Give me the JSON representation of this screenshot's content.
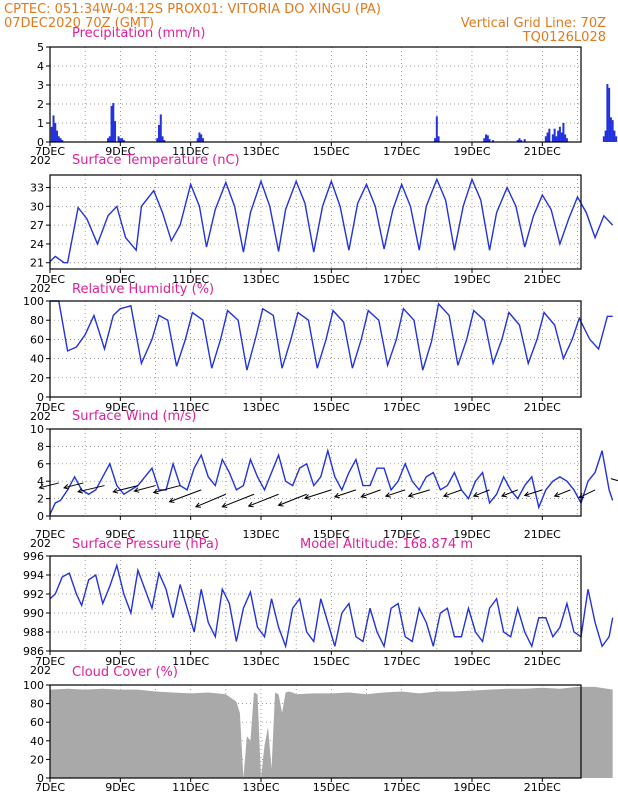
{
  "header": {
    "line1": "CPTEC:   051:34W-04:12S   PROX01: VITORIA DO XINGU (PA)",
    "line2_left": "07DEC2020 70Z (GMT)",
    "line2_right": "Vertical Grid Line: 70Z",
    "line3_right": "TQ0126L028"
  },
  "x_axis": {
    "tick_labels": [
      "7DEC",
      "9DEC",
      "11DEC",
      "13DEC",
      "15DEC",
      "17DEC",
      "19DEC",
      "21DEC"
    ],
    "cutoff_label": "202"
  },
  "colors": {
    "header": "#e07a1f",
    "panel_title": "#e0209a",
    "series": "#2233dd",
    "cloud": "#a9a9a9",
    "wind_arrow": "#000000"
  },
  "chart_data": [
    {
      "id": "precip",
      "type": "bar",
      "title": "Precipitation (mm/h)",
      "ylim": [
        0,
        5
      ],
      "yticks": [
        0,
        1,
        2,
        3,
        4,
        5
      ],
      "unit": "mm/h",
      "x_unit": "days since 7DEC",
      "x": [
        0.05,
        0.1,
        0.15,
        0.2,
        0.25,
        0.3,
        0.35,
        1.65,
        1.7,
        1.75,
        1.8,
        1.85,
        1.95,
        2.0,
        2.05,
        2.1,
        3.05,
        3.1,
        3.15,
        3.2,
        3.25,
        4.2,
        4.25,
        4.3,
        4.35,
        10.95,
        11.0,
        11.05,
        12.35,
        12.4,
        12.45,
        12.5,
        12.6,
        13.3,
        13.35,
        13.4,
        13.5,
        14.1,
        14.15,
        14.2,
        14.3,
        14.35,
        14.4,
        14.45,
        14.5,
        14.55,
        14.6,
        14.65,
        14.7,
        15.75,
        15.8,
        15.85,
        15.9,
        15.95,
        16.0,
        16.05,
        16.1
      ],
      "values": [
        0.8,
        1.4,
        1.0,
        0.6,
        0.3,
        0.2,
        0.1,
        0.2,
        0.3,
        1.9,
        2.05,
        1.1,
        0.3,
        0.2,
        0.2,
        0.1,
        0.2,
        0.9,
        1.45,
        0.3,
        0.1,
        0.2,
        0.5,
        0.4,
        0.2,
        0.2,
        1.35,
        0.3,
        0.2,
        0.4,
        0.35,
        0.15,
        0.1,
        0.1,
        0.2,
        0.1,
        0.15,
        0.3,
        0.5,
        0.7,
        0.4,
        0.7,
        0.3,
        0.6,
        0.8,
        0.5,
        1.0,
        0.4,
        0.2,
        0.3,
        0.6,
        3.05,
        2.85,
        1.3,
        1.15,
        0.6,
        0.3
      ]
    },
    {
      "id": "temp",
      "type": "line",
      "title": "Surface Temperature (nC)",
      "ylim": [
        20,
        35
      ],
      "yticks": [
        21,
        24,
        27,
        30,
        33
      ],
      "unit": "C",
      "x_unit": "days since 7DEC",
      "series": [
        {
          "x": [
            0,
            0.15,
            0.4,
            0.5,
            0.8,
            1.05,
            1.35,
            1.65,
            1.9,
            2.15,
            2.45,
            2.6,
            2.95,
            3.2,
            3.45,
            3.7,
            4.0,
            4.25,
            4.45,
            4.7,
            5.0,
            5.25,
            5.5,
            5.7,
            6.0,
            6.25,
            6.5,
            6.7,
            7.0,
            7.25,
            7.5,
            7.75,
            8.0,
            8.25,
            8.5,
            8.75,
            9.0,
            9.25,
            9.5,
            9.75,
            10.0,
            10.25,
            10.5,
            10.7,
            11.0,
            11.25,
            11.5,
            11.75,
            12.0,
            12.25,
            12.5,
            12.7,
            13.0,
            13.25,
            13.5,
            13.75,
            14.0,
            14.25,
            14.5,
            14.75,
            15.0,
            15.25,
            15.5,
            15.75,
            16.0
          ],
          "values": [
            21.2,
            22.0,
            21.0,
            21.0,
            29.8,
            28.0,
            24.0,
            28.5,
            30.0,
            25.0,
            23.0,
            30.0,
            32.5,
            29.0,
            24.5,
            27.0,
            33.5,
            30.0,
            23.5,
            29.5,
            33.8,
            30.0,
            22.7,
            29.0,
            34.0,
            30.0,
            22.8,
            29.5,
            34.0,
            30.5,
            22.7,
            30.0,
            34.0,
            30.0,
            23.0,
            30.5,
            33.5,
            30.0,
            23.2,
            29.5,
            33.5,
            30.0,
            23.0,
            30.0,
            34.3,
            31.0,
            23.0,
            30.0,
            34.3,
            31.0,
            23.0,
            29.0,
            33.0,
            30.0,
            23.5,
            28.5,
            31.8,
            29.5,
            24.0,
            28.0,
            31.5,
            29.0,
            25.0,
            28.5,
            27.0
          ]
        }
      ]
    },
    {
      "id": "rh",
      "type": "line",
      "title": "Relative Humidity (%)",
      "ylim": [
        0,
        100
      ],
      "yticks": [
        0,
        20,
        40,
        60,
        80,
        100
      ],
      "unit": "%",
      "x_unit": "days since 7DEC",
      "series": [
        {
          "x": [
            0,
            0.25,
            0.5,
            0.75,
            1.0,
            1.25,
            1.55,
            1.8,
            2.0,
            2.3,
            2.6,
            2.9,
            3.1,
            3.35,
            3.6,
            3.85,
            4.05,
            4.35,
            4.6,
            4.85,
            5.05,
            5.35,
            5.6,
            5.85,
            6.05,
            6.35,
            6.6,
            6.85,
            7.05,
            7.35,
            7.6,
            7.85,
            8.05,
            8.35,
            8.6,
            8.85,
            9.05,
            9.35,
            9.6,
            9.85,
            10.05,
            10.35,
            10.6,
            10.85,
            11.05,
            11.35,
            11.6,
            11.85,
            12.05,
            12.35,
            12.6,
            12.85,
            13.05,
            13.35,
            13.6,
            13.85,
            14.05,
            14.35,
            14.6,
            14.85,
            15.05,
            15.35,
            15.6,
            15.85,
            16.0
          ],
          "values": [
            100,
            100,
            48,
            52,
            65,
            85,
            50,
            85,
            92,
            95,
            35,
            60,
            85,
            80,
            32,
            60,
            88,
            80,
            30,
            60,
            90,
            80,
            28,
            62,
            92,
            85,
            30,
            60,
            88,
            80,
            30,
            60,
            90,
            78,
            30,
            60,
            90,
            80,
            33,
            60,
            92,
            80,
            28,
            58,
            97,
            85,
            33,
            60,
            90,
            80,
            35,
            60,
            88,
            75,
            35,
            60,
            88,
            75,
            40,
            60,
            82,
            60,
            50,
            84,
            84
          ]
        }
      ]
    },
    {
      "id": "wind",
      "type": "line",
      "title": "Surface Wind (m/s)",
      "ylim": [
        0,
        10
      ],
      "yticks": [
        0,
        2,
        4,
        6,
        8,
        10
      ],
      "unit": "m/s",
      "x_unit": "days since 7DEC",
      "series": [
        {
          "x": [
            0,
            0.15,
            0.3,
            0.5,
            0.7,
            0.9,
            1.1,
            1.3,
            1.5,
            1.7,
            1.9,
            2.1,
            2.3,
            2.5,
            2.7,
            2.9,
            3.1,
            3.3,
            3.5,
            3.7,
            3.9,
            4.1,
            4.3,
            4.5,
            4.7,
            4.9,
            5.1,
            5.3,
            5.5,
            5.7,
            5.9,
            6.1,
            6.3,
            6.5,
            6.7,
            6.9,
            7.1,
            7.3,
            7.5,
            7.7,
            7.9,
            8.1,
            8.3,
            8.5,
            8.7,
            8.9,
            9.1,
            9.3,
            9.5,
            9.7,
            9.9,
            10.1,
            10.3,
            10.5,
            10.7,
            10.9,
            11.1,
            11.3,
            11.5,
            11.7,
            11.9,
            12.1,
            12.3,
            12.5,
            12.7,
            12.9,
            13.1,
            13.3,
            13.5,
            13.7,
            13.9,
            14.1,
            14.3,
            14.5,
            14.7,
            14.9,
            15.1,
            15.3,
            15.5,
            15.7,
            15.9,
            16.0
          ],
          "values": [
            0.2,
            1.5,
            1.8,
            3.0,
            4.5,
            3.0,
            2.5,
            3.0,
            4.5,
            6.0,
            3.5,
            2.5,
            3.0,
            3.5,
            4.5,
            5.5,
            3.0,
            3.0,
            6.0,
            3.5,
            3.0,
            5.5,
            7.0,
            4.5,
            3.5,
            6.5,
            5.0,
            3.0,
            3.5,
            6.5,
            4.5,
            3.0,
            5.0,
            7.0,
            4.0,
            3.5,
            5.5,
            6.0,
            3.5,
            4.5,
            7.5,
            4.5,
            3.0,
            5.0,
            6.5,
            3.5,
            3.5,
            5.5,
            5.5,
            3.0,
            4.0,
            6.0,
            4.0,
            3.0,
            4.5,
            5.0,
            3.0,
            3.5,
            5.0,
            3.0,
            2.0,
            4.0,
            5.0,
            1.5,
            2.5,
            4.5,
            3.0,
            2.0,
            3.5,
            4.5,
            1.0,
            3.0,
            4.0,
            4.5,
            4.0,
            3.0,
            1.5,
            4.0,
            5.0,
            7.5,
            3.0,
            1.8
          ]
        }
      ],
      "arrows": [
        {
          "x": 0.25,
          "y": 3.8,
          "u": 0.55,
          "v": 0.35
        },
        {
          "x": 0.95,
          "y": 3.8,
          "u": 0.55,
          "v": 0.35
        },
        {
          "x": 1.55,
          "y": 3.5,
          "u": 0.75,
          "v": 0.45
        },
        {
          "x": 2.5,
          "y": 3.5,
          "u": 0.7,
          "v": 0.45
        },
        {
          "x": 3.0,
          "y": 3.5,
          "u": 0.6,
          "v": 0.4
        },
        {
          "x": 3.7,
          "y": 3.5,
          "u": 0.75,
          "v": 0.5
        },
        {
          "x": 4.3,
          "y": 3.0,
          "u": 0.9,
          "v": 0.85
        },
        {
          "x": 5.0,
          "y": 2.5,
          "u": 0.85,
          "v": 0.9
        },
        {
          "x": 5.8,
          "y": 2.5,
          "u": 0.9,
          "v": 0.9
        },
        {
          "x": 6.5,
          "y": 2.5,
          "u": 0.85,
          "v": 0.85
        },
        {
          "x": 7.3,
          "y": 2.5,
          "u": 0.8,
          "v": 0.8
        },
        {
          "x": 8.0,
          "y": 3.0,
          "u": 0.75,
          "v": 0.6
        },
        {
          "x": 8.7,
          "y": 3.0,
          "u": 0.6,
          "v": 0.5
        },
        {
          "x": 9.4,
          "y": 3.0,
          "u": 0.55,
          "v": 0.5
        },
        {
          "x": 10.1,
          "y": 3.0,
          "u": 0.55,
          "v": 0.45
        },
        {
          "x": 10.8,
          "y": 3.0,
          "u": 0.6,
          "v": 0.45
        },
        {
          "x": 11.7,
          "y": 3.0,
          "u": 0.5,
          "v": 0.45
        },
        {
          "x": 12.5,
          "y": 3.0,
          "u": 0.45,
          "v": 0.45
        },
        {
          "x": 13.3,
          "y": 3.0,
          "u": 0.45,
          "v": 0.45
        },
        {
          "x": 14.0,
          "y": 3.0,
          "u": 0.5,
          "v": 0.4
        },
        {
          "x": 14.8,
          "y": 3.0,
          "u": 0.45,
          "v": 0.45
        },
        {
          "x": 15.5,
          "y": 3.0,
          "u": 0.45,
          "v": 0.55
        },
        {
          "x": 15.95,
          "y": 4.3,
          "u": -0.4,
          "v": 0.3
        }
      ]
    },
    {
      "id": "pressure",
      "type": "line",
      "title": "Surface Pressure (hPa)",
      "subtitle": "Model Altitude: 168.874 m",
      "ylim": [
        986,
        996
      ],
      "yticks": [
        986,
        988,
        990,
        992,
        994,
        996
      ],
      "unit": "hPa",
      "x_unit": "days since 7DEC",
      "series": [
        {
          "x": [
            0,
            0.15,
            0.35,
            0.55,
            0.75,
            0.9,
            1.1,
            1.3,
            1.5,
            1.7,
            1.9,
            2.1,
            2.3,
            2.5,
            2.7,
            2.9,
            3.1,
            3.3,
            3.5,
            3.7,
            3.9,
            4.1,
            4.3,
            4.5,
            4.7,
            4.9,
            5.1,
            5.3,
            5.5,
            5.7,
            5.9,
            6.1,
            6.3,
            6.5,
            6.7,
            6.9,
            7.1,
            7.3,
            7.5,
            7.7,
            7.9,
            8.1,
            8.3,
            8.5,
            8.7,
            8.9,
            9.1,
            9.3,
            9.5,
            9.7,
            9.9,
            10.1,
            10.3,
            10.5,
            10.7,
            10.9,
            11.1,
            11.3,
            11.5,
            11.7,
            11.9,
            12.1,
            12.3,
            12.5,
            12.7,
            12.9,
            13.1,
            13.3,
            13.5,
            13.7,
            13.9,
            14.1,
            14.3,
            14.5,
            14.7,
            14.9,
            15.1,
            15.3,
            15.5,
            15.7,
            15.9,
            16.0
          ],
          "values": [
            991.5,
            992.0,
            993.8,
            994.2,
            992.0,
            990.8,
            993.5,
            994.0,
            991.0,
            992.8,
            995.0,
            992.0,
            990.0,
            994.5,
            992.5,
            990.5,
            994.2,
            992.5,
            989.5,
            993.0,
            990.5,
            988.0,
            992.5,
            989.0,
            987.5,
            992.5,
            991.0,
            987.0,
            990.5,
            992.2,
            988.5,
            987.5,
            991.5,
            988.5,
            986.5,
            990.5,
            991.5,
            988.0,
            987.0,
            991.5,
            989.0,
            986.5,
            990.0,
            991.0,
            987.5,
            987.0,
            990.5,
            988.0,
            986.5,
            990.5,
            991.0,
            987.5,
            987.0,
            990.5,
            989.0,
            986.5,
            990.0,
            990.5,
            987.5,
            987.5,
            990.5,
            988.0,
            987.0,
            990.5,
            991.5,
            988.0,
            987.5,
            990.5,
            988.0,
            986.5,
            989.5,
            989.5,
            987.5,
            988.5,
            991.0,
            988.0,
            987.5,
            992.5,
            989.0,
            986.5,
            987.5,
            989.5
          ]
        }
      ]
    },
    {
      "id": "cloud",
      "type": "area",
      "title": "Cloud Cover (%)",
      "ylim": [
        0,
        100
      ],
      "yticks": [
        0,
        20,
        40,
        60,
        80,
        100
      ],
      "unit": "%",
      "x_unit": "days since 7DEC",
      "series": [
        {
          "x": [
            0,
            0.5,
            1.0,
            1.5,
            2.0,
            2.5,
            3.0,
            3.5,
            4.0,
            4.5,
            5.0,
            5.3,
            5.4,
            5.5,
            5.6,
            5.7,
            5.8,
            5.9,
            6.0,
            6.1,
            6.2,
            6.3,
            6.4,
            6.5,
            6.6,
            6.7,
            6.8,
            6.9,
            7.0,
            7.5,
            8.0,
            8.5,
            9.0,
            9.5,
            10.0,
            10.5,
            11.0,
            11.5,
            12.0,
            12.5,
            13.0,
            13.5,
            14.0,
            14.5,
            15.0,
            15.5,
            16.0
          ],
          "values": [
            95,
            96,
            95,
            96,
            95,
            95,
            93,
            92,
            91,
            92,
            90,
            82,
            70,
            0,
            45,
            40,
            92,
            90,
            0,
            35,
            55,
            10,
            92,
            90,
            70,
            92,
            93,
            92,
            90,
            91,
            91,
            92,
            90,
            92,
            93,
            91,
            93,
            93,
            94,
            95,
            96,
            96,
            97,
            96,
            98,
            98,
            95
          ]
        }
      ]
    }
  ]
}
